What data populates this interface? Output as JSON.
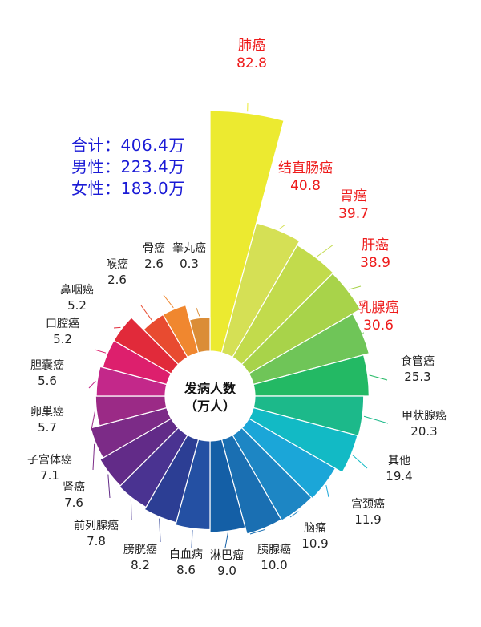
{
  "summary": {
    "total": "合计：406.4万",
    "male": "男性：223.4万",
    "female": "女性：183.0万"
  },
  "center": {
    "line1": "发病人数",
    "line2": "（万人）"
  },
  "chart_data": {
    "type": "bar",
    "categories": [
      "肺癌",
      "结直肠癌",
      "胃癌",
      "肝癌",
      "乳腺癌",
      "食管癌",
      "甲状腺癌",
      "其他",
      "宫颈癌",
      "脑瘤",
      "胰腺癌",
      "淋巴瘤",
      "白血病",
      "膀胱癌",
      "前列腺癌",
      "肾癌",
      "子宫体癌",
      "卵巢癌",
      "胆囊癌",
      "口腔癌",
      "鼻咽癌",
      "喉癌",
      "骨癌",
      "睾丸癌"
    ],
    "values": [
      82.8,
      40.8,
      39.7,
      38.9,
      30.6,
      25.3,
      20.3,
      19.4,
      11.9,
      10.9,
      10.0,
      9.0,
      8.6,
      8.2,
      7.8,
      7.6,
      7.1,
      5.7,
      5.6,
      5.2,
      5.2,
      2.6,
      2.6,
      0.3
    ],
    "value_labels": [
      "82.8",
      "40.8",
      "39.7",
      "38.9",
      "30.6",
      "25.3",
      "20.3",
      "19.4",
      "11.9",
      "10.9",
      "10.0",
      "9.0",
      "8.6",
      "8.2",
      "7.8",
      "7.6",
      "7.1",
      "5.7",
      "5.6",
      "5.2",
      "5.2",
      "2.6",
      "2.6",
      "0.3"
    ],
    "colors": [
      "#ecea30",
      "#d5e055",
      "#c2db4c",
      "#a8d34a",
      "#6fc558",
      "#23b964",
      "#1cb98a",
      "#12bac5",
      "#1ba6d8",
      "#1d86c4",
      "#1a6fb2",
      "#145fa6",
      "#2450a3",
      "#2c3e94",
      "#4a3391",
      "#622b88",
      "#7c2b87",
      "#9b2a86",
      "#c3288a",
      "#dd1f6d",
      "#e12a3a",
      "#e84b30",
      "#f0872f",
      "#db8d36"
    ],
    "highlighted": [
      "肺癌",
      "结直肠癌",
      "胃癌",
      "肝癌",
      "乳腺癌"
    ],
    "highlight_color": "#ee1c1c"
  }
}
